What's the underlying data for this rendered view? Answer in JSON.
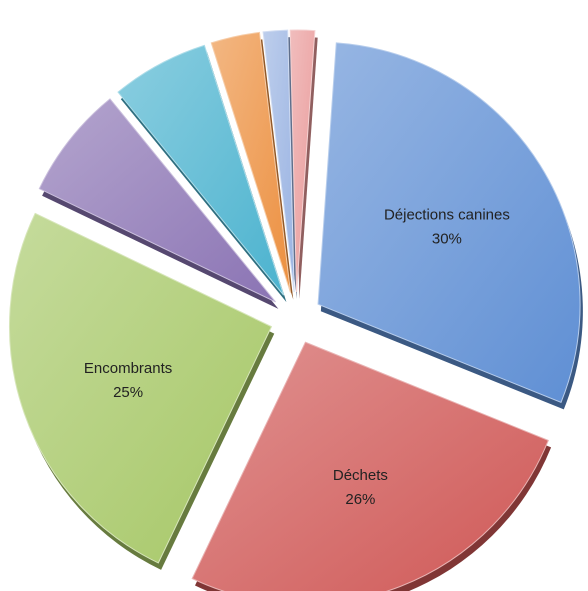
{
  "chart_data": {
    "type": "pie",
    "title": "",
    "slices": [
      {
        "label": "Déjections canines",
        "percent_label": "30%",
        "value": 30,
        "color": "#5f8fd4",
        "labeled": true
      },
      {
        "label": "Déchets",
        "percent_label": "26%",
        "value": 26,
        "color": "#cf5755",
        "labeled": true
      },
      {
        "label": "Encombrants",
        "percent_label": "25%",
        "value": 25,
        "color": "#a6c766",
        "labeled": true
      },
      {
        "label": "",
        "percent_label": "",
        "value": 7,
        "color": "#8b74b4",
        "labeled": false
      },
      {
        "label": "",
        "percent_label": "",
        "value": 6,
        "color": "#4cb3cf",
        "labeled": false
      },
      {
        "label": "",
        "percent_label": "",
        "value": 3,
        "color": "#ec9040",
        "labeled": false
      },
      {
        "label": "",
        "percent_label": "",
        "value": 1.5,
        "color": "#9ab3e2",
        "labeled": false
      },
      {
        "label": "",
        "percent_label": "",
        "value": 1.5,
        "color": "#e99a9a",
        "labeled": false
      }
    ]
  }
}
